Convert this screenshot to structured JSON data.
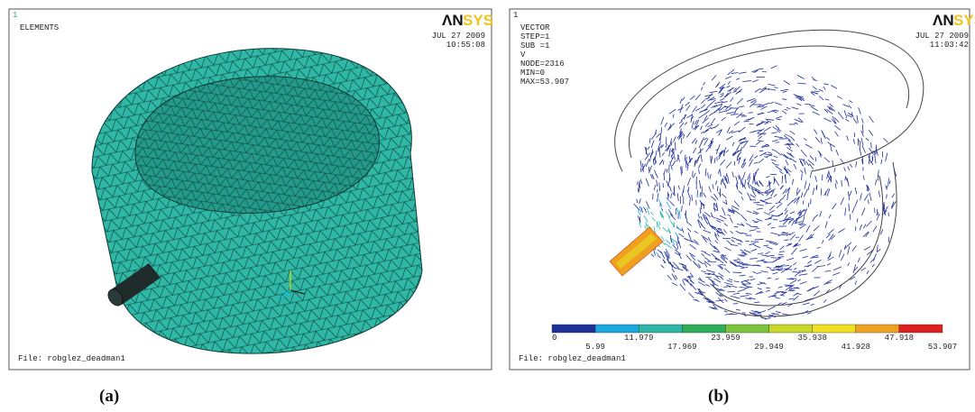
{
  "panel_a": {
    "corner_number": "1",
    "label": "ELEMENTS",
    "logo_left": "ΛN",
    "logo_right": "SYS",
    "date": "JUL 27 2009",
    "time": "10:55:08",
    "file": "File: robglez_deadman1",
    "caption": "(a)"
  },
  "panel_b": {
    "corner_number": "1",
    "info": [
      "VECTOR",
      "STEP=1",
      "SUB =1",
      "V",
      "NODE=2316",
      "MIN=0",
      "MAX=53.907"
    ],
    "logo_left": "ΛN",
    "logo_right": "SYS",
    "date": "JUL 27 2009",
    "time": "11:03:42",
    "legend_labels": [
      "0",
      "5.99",
      "11.979",
      "17.969",
      "23.959",
      "29.949",
      "35.938",
      "41.928",
      "47.918",
      "53.907"
    ],
    "file": "File: robglez_deadman1",
    "caption": "(b)"
  }
}
